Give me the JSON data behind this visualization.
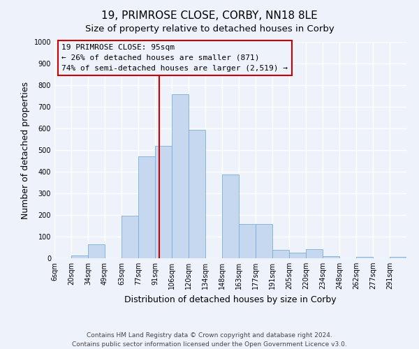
{
  "title": "19, PRIMROSE CLOSE, CORBY, NN18 8LE",
  "subtitle": "Size of property relative to detached houses in Corby",
  "xlabel": "Distribution of detached houses by size in Corby",
  "ylabel": "Number of detached properties",
  "bin_labels": [
    "6sqm",
    "20sqm",
    "34sqm",
    "49sqm",
    "63sqm",
    "77sqm",
    "91sqm",
    "106sqm",
    "120sqm",
    "134sqm",
    "148sqm",
    "163sqm",
    "177sqm",
    "191sqm",
    "205sqm",
    "220sqm",
    "234sqm",
    "248sqm",
    "262sqm",
    "277sqm",
    "291sqm"
  ],
  "bar_values": [
    0,
    13,
    65,
    0,
    198,
    470,
    518,
    758,
    595,
    0,
    388,
    158,
    158,
    40,
    27,
    43,
    10,
    0,
    5,
    0,
    5
  ],
  "bar_color": "#c5d8f0",
  "bar_edge_color": "#7baed4",
  "property_line_x": 95,
  "property_line_color": "#cc0000",
  "annotation_line1": "19 PRIMROSE CLOSE: 95sqm",
  "annotation_line2": "← 26% of detached houses are smaller (871)",
  "annotation_line3": "74% of semi-detached houses are larger (2,519) →",
  "annotation_box_edge_color": "#cc0000",
  "ylim": [
    0,
    1000
  ],
  "yticks": [
    0,
    100,
    200,
    300,
    400,
    500,
    600,
    700,
    800,
    900,
    1000
  ],
  "footer_line1": "Contains HM Land Registry data © Crown copyright and database right 2024.",
  "footer_line2": "Contains public sector information licensed under the Open Government Licence v3.0.",
  "bg_color": "#eef2fb",
  "grid_color": "#ffffff",
  "title_fontsize": 11,
  "subtitle_fontsize": 9.5,
  "label_fontsize": 9,
  "tick_fontsize": 7,
  "annotation_fontsize": 8,
  "footer_fontsize": 6.5
}
